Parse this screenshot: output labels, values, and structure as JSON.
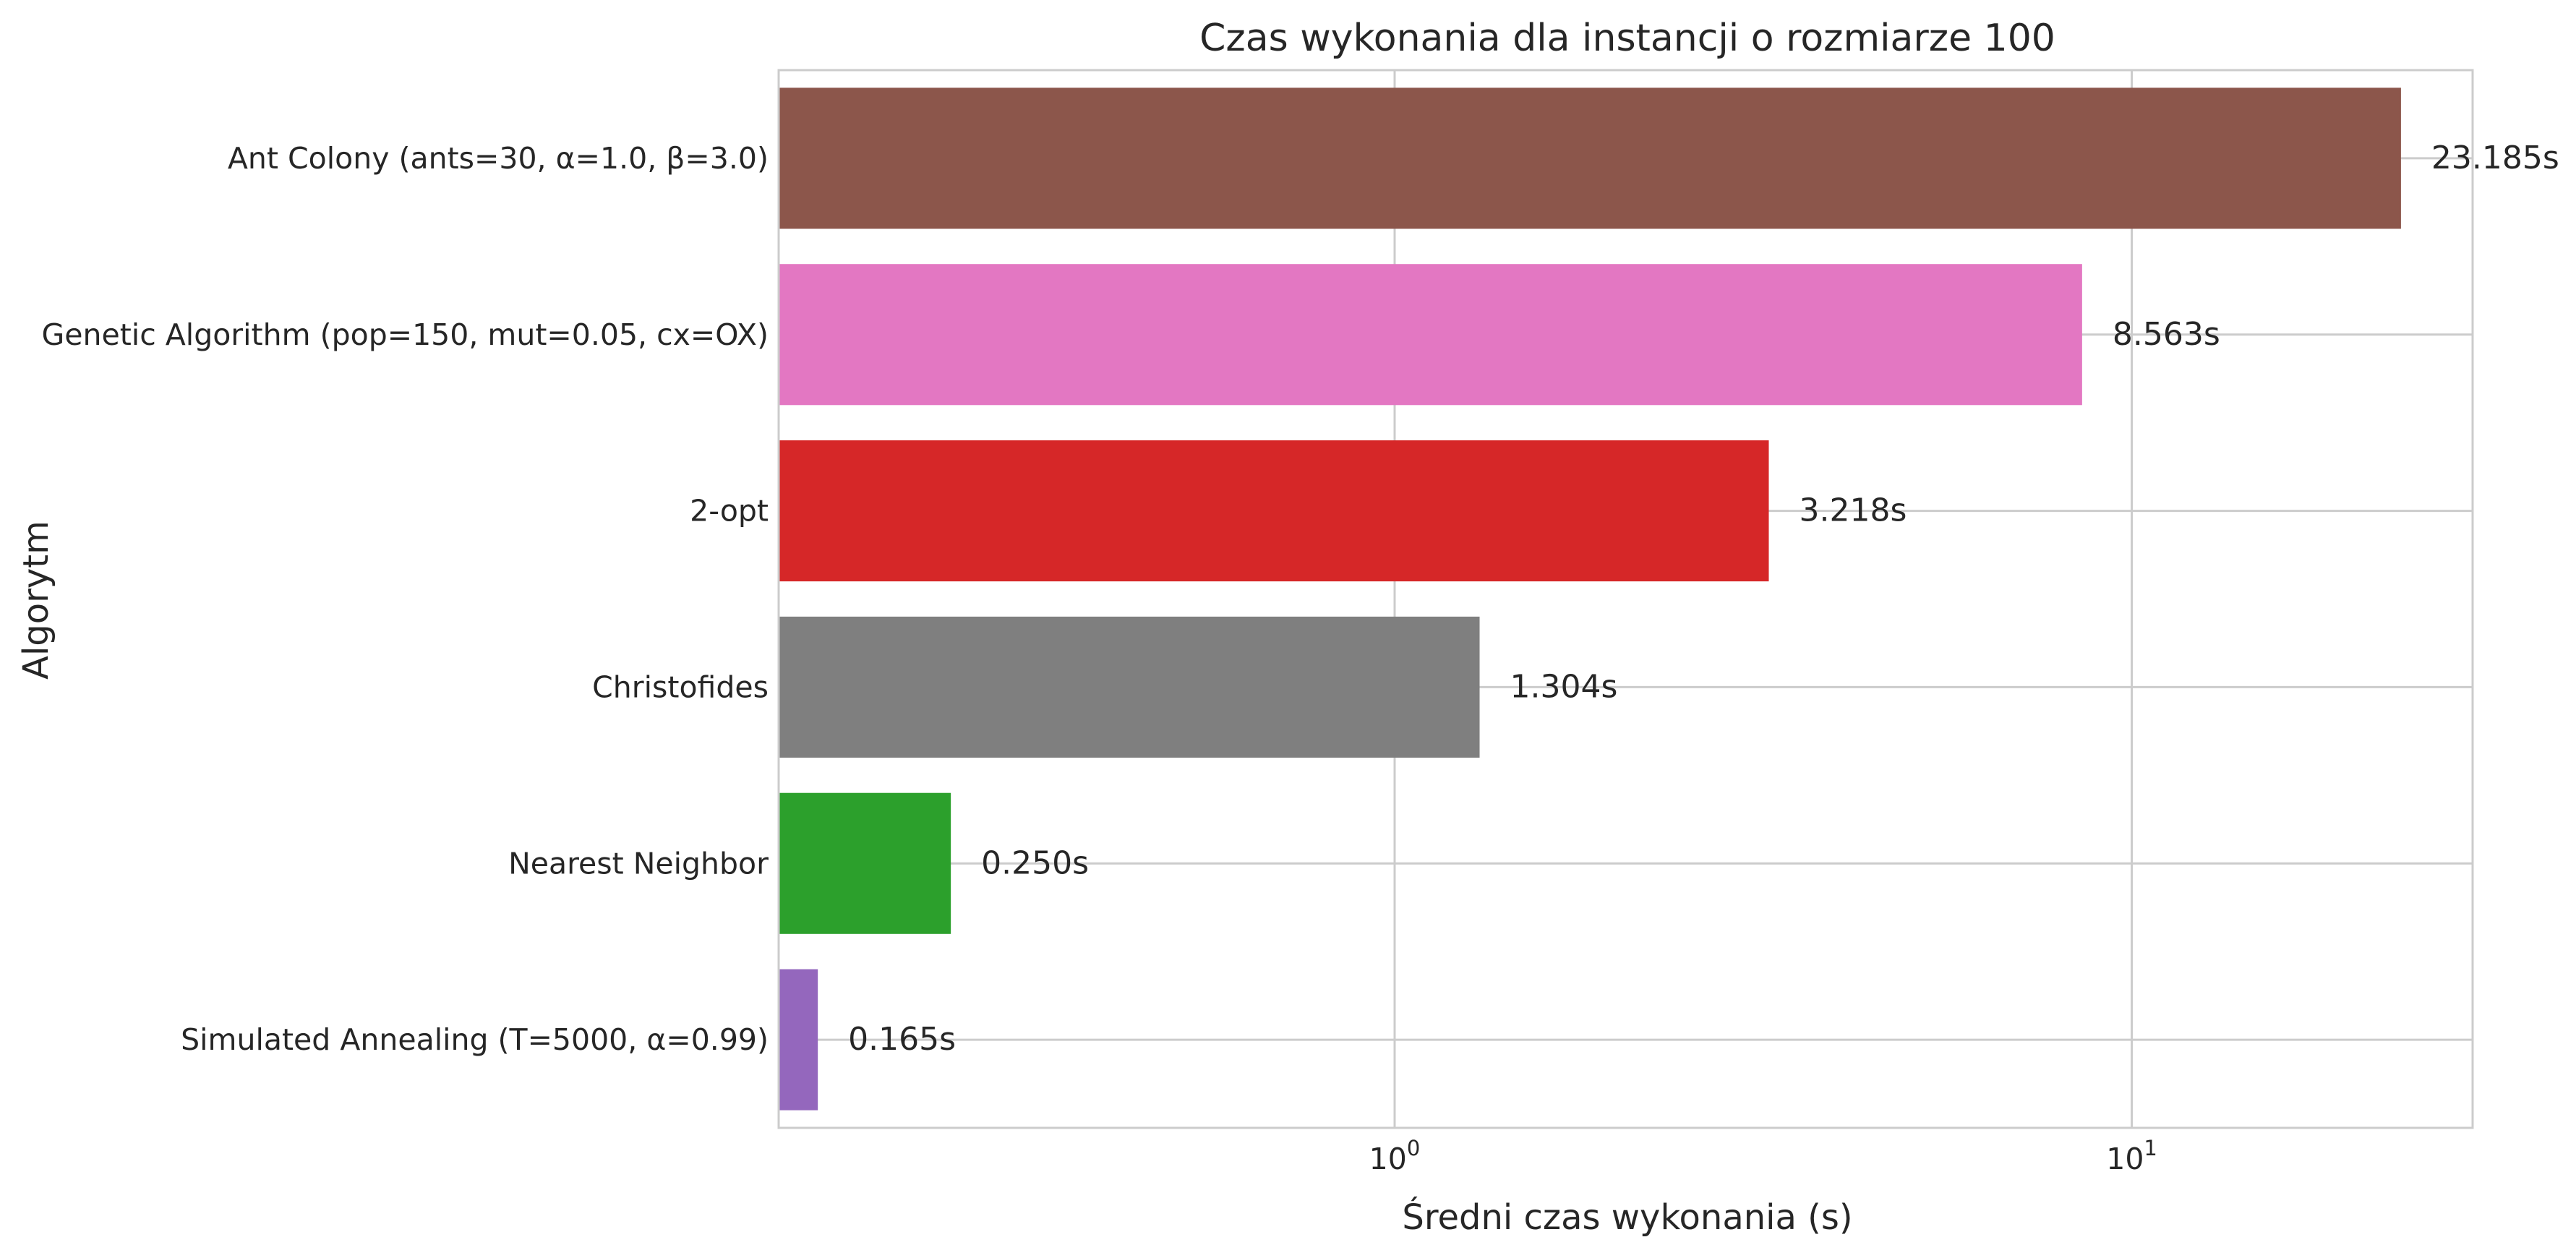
{
  "chart_data": {
    "type": "bar",
    "orientation": "horizontal",
    "title": "Czas wykonania dla instancji o rozmiarze 100",
    "xlabel": "Średni czas wykonania (s)",
    "ylabel": "Algorytm",
    "xscale": "log",
    "xlim": [
      0.146,
      29.0
    ],
    "xticks": [
      {
        "base": "10",
        "exp": "0",
        "value": 1
      },
      {
        "base": "10",
        "exp": "1",
        "value": 10
      }
    ],
    "grid": true,
    "legend": "none",
    "categories": [
      "Ant Colony (ants=30, α=1.0, β=3.0)",
      "Genetic Algorithm (pop=150, mut=0.05, cx=OX)",
      "2-opt",
      "Christofides",
      "Nearest Neighbor",
      "Simulated Annealing (T=5000, α=0.99)"
    ],
    "values": [
      23.185,
      8.563,
      3.218,
      1.304,
      0.25,
      0.165
    ],
    "value_labels": [
      "23.185s",
      "8.563s",
      "3.218s",
      "1.304s",
      "0.250s",
      "0.165s"
    ],
    "colors": [
      "#8c564b",
      "#e377c2",
      "#d62728",
      "#7f7f7f",
      "#2ca02c",
      "#9467bd"
    ]
  }
}
